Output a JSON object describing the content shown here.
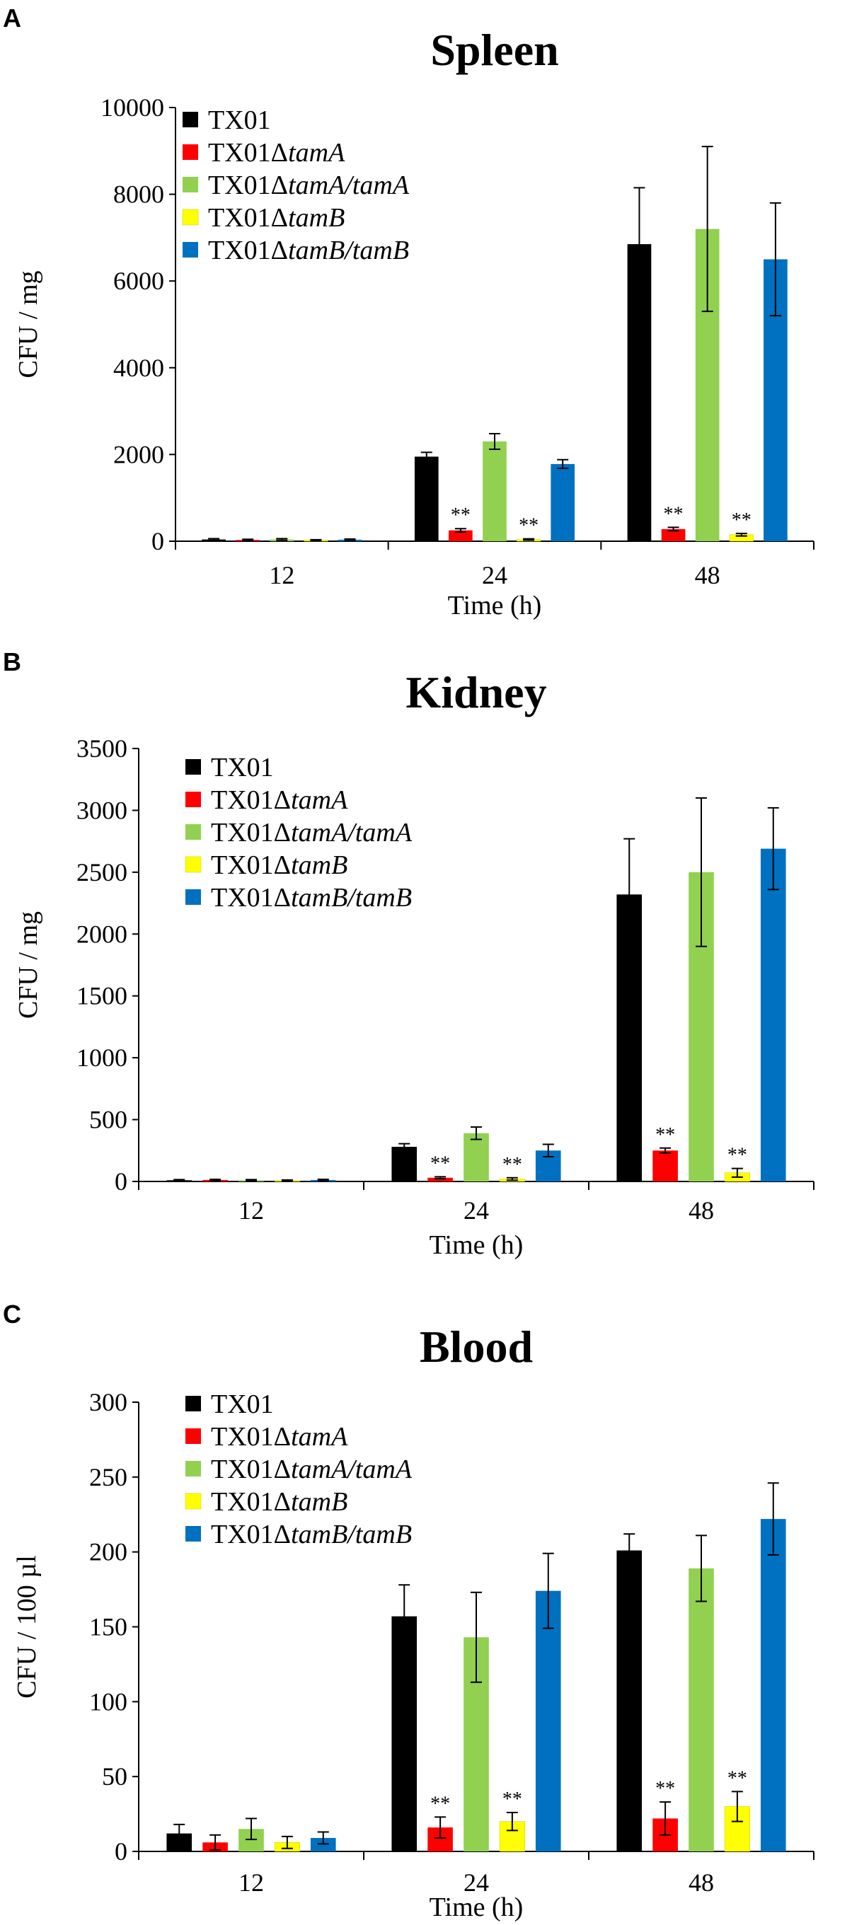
{
  "series_names": [
    [
      "TX01",
      ""
    ],
    [
      "TX01Δ",
      "tamA"
    ],
    [
      "TX01Δ",
      "tamA/tamA"
    ],
    [
      "TX01Δ",
      "tamB"
    ],
    [
      "TX01Δ",
      "tamB/tamB"
    ]
  ],
  "colors": [
    "#000000",
    "#ff0000",
    "#92d050",
    "#ffff00",
    "#0070c0"
  ],
  "chart_data": [
    {
      "panel": "A",
      "type": "bar",
      "title": "Spleen",
      "xlabel": "Time (h)",
      "ylabel": "CFU / mg",
      "categories": [
        "12",
        "24",
        "48"
      ],
      "ylim": [
        0,
        10000
      ],
      "yticks": [
        "0",
        "2000",
        "4000",
        "6000",
        "8000",
        "10000"
      ],
      "legend": "top-left",
      "series": [
        {
          "name": "TX01",
          "values": [
            40,
            1950,
            6850
          ],
          "errors": [
            20,
            100,
            1300
          ]
        },
        {
          "name": "TX01ΔtamA",
          "values": [
            30,
            250,
            280
          ],
          "errors": [
            15,
            40,
            40
          ]
        },
        {
          "name": "TX01ΔtamA/tamA",
          "values": [
            40,
            2300,
            7200
          ],
          "errors": [
            20,
            180,
            1900
          ]
        },
        {
          "name": "TX01ΔtamB",
          "values": [
            25,
            40,
            150
          ],
          "errors": [
            10,
            15,
            30
          ]
        },
        {
          "name": "TX01ΔtamB/tamB",
          "values": [
            35,
            1780,
            6500
          ],
          "errors": [
            15,
            100,
            1300
          ]
        }
      ],
      "annotations": [
        {
          "text": "**",
          "category": "24",
          "series": 1
        },
        {
          "text": "**",
          "category": "24",
          "series": 3
        },
        {
          "text": "**",
          "category": "48",
          "series": 1
        },
        {
          "text": "**",
          "category": "48",
          "series": 3
        }
      ]
    },
    {
      "panel": "B",
      "type": "bar",
      "title": "Kidney",
      "xlabel": "Time (h)",
      "ylabel": "CFU / mg",
      "categories": [
        "12",
        "24",
        "48"
      ],
      "ylim": [
        0,
        3500
      ],
      "yticks": [
        "0",
        "500",
        "1000",
        "1500",
        "2000",
        "2500",
        "3000",
        "3500"
      ],
      "legend": "top-left",
      "series": [
        {
          "name": "TX01",
          "values": [
            10,
            280,
            2320
          ],
          "errors": [
            5,
            25,
            450
          ]
        },
        {
          "name": "TX01ΔtamA",
          "values": [
            12,
            30,
            250
          ],
          "errors": [
            5,
            8,
            20
          ]
        },
        {
          "name": "TX01ΔtamA/tamA",
          "values": [
            10,
            390,
            2500
          ],
          "errors": [
            5,
            50,
            600
          ]
        },
        {
          "name": "TX01ΔtamB",
          "values": [
            8,
            20,
            70
          ],
          "errors": [
            4,
            10,
            35
          ]
        },
        {
          "name": "TX01ΔtamB/tamB",
          "values": [
            12,
            250,
            2690
          ],
          "errors": [
            5,
            50,
            330
          ]
        }
      ],
      "annotations": [
        {
          "text": "**",
          "category": "24",
          "series": 1
        },
        {
          "text": "**",
          "category": "24",
          "series": 3
        },
        {
          "text": "**",
          "category": "48",
          "series": 1
        },
        {
          "text": "**",
          "category": "48",
          "series": 3
        }
      ]
    },
    {
      "panel": "C",
      "type": "bar",
      "title": "Blood",
      "xlabel": "Time (h)",
      "ylabel": "CFU / 100 µl",
      "categories": [
        "12",
        "24",
        "48"
      ],
      "ylim": [
        0,
        300
      ],
      "yticks": [
        "0",
        "50",
        "100",
        "150",
        "200",
        "250",
        "300"
      ],
      "legend": "top-left",
      "series": [
        {
          "name": "TX01",
          "values": [
            12,
            157,
            201
          ],
          "errors": [
            6,
            21,
            11
          ]
        },
        {
          "name": "TX01ΔtamA",
          "values": [
            6,
            16,
            22
          ],
          "errors": [
            5,
            7,
            11
          ]
        },
        {
          "name": "TX01ΔtamA/tamA",
          "values": [
            15,
            143,
            189
          ],
          "errors": [
            7,
            30,
            22
          ]
        },
        {
          "name": "TX01ΔtamB",
          "values": [
            6,
            20,
            30
          ],
          "errors": [
            4,
            6,
            10
          ]
        },
        {
          "name": "TX01ΔtamB/tamB",
          "values": [
            9,
            174,
            222
          ],
          "errors": [
            4,
            25,
            24
          ]
        }
      ],
      "annotations": [
        {
          "text": "**",
          "category": "24",
          "series": 1
        },
        {
          "text": "**",
          "category": "24",
          "series": 3
        },
        {
          "text": "**",
          "category": "48",
          "series": 1
        },
        {
          "text": "**",
          "category": "48",
          "series": 3
        }
      ]
    }
  ]
}
